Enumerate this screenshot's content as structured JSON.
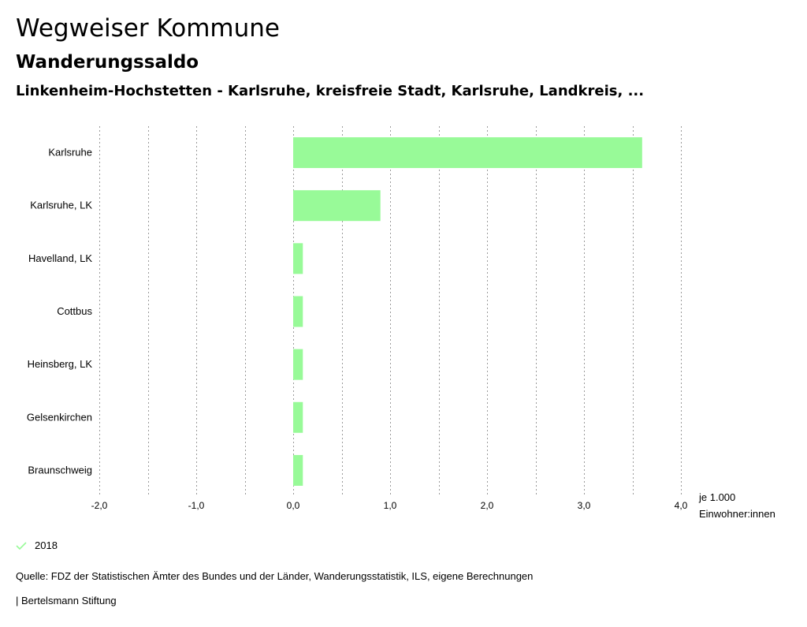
{
  "header": {
    "title": "Wegweiser Kommune",
    "subtitle": "Wanderungssaldo",
    "region": "Linkenheim-Hochstetten - Karlsruhe, kreisfreie Stadt, Karlsruhe, Landkreis, ..."
  },
  "chart_data": {
    "type": "bar",
    "orientation": "horizontal",
    "categories": [
      "Karlsruhe",
      "Karlsruhe, LK",
      "Havelland, LK",
      "Cottbus",
      "Heinsberg, LK",
      "Gelsenkirchen",
      "Braunschweig"
    ],
    "series": [
      {
        "name": "2018",
        "values": [
          3.6,
          0.9,
          0.1,
          0.1,
          0.1,
          0.1,
          0.1
        ]
      }
    ],
    "xlim": [
      -2.0,
      4.0
    ],
    "xticks": [
      {
        "value": -2.0,
        "label": "-2,0"
      },
      {
        "value": -1.0,
        "label": "-1,0"
      },
      {
        "value": 0.0,
        "label": "0,0"
      },
      {
        "value": 1.0,
        "label": "1,0"
      },
      {
        "value": 2.0,
        "label": "2,0"
      },
      {
        "value": 3.0,
        "label": "3,0"
      },
      {
        "value": 4.0,
        "label": "4,0"
      }
    ],
    "gridlines": [
      -2.0,
      -1.5,
      -1.0,
      -0.5,
      0.0,
      0.5,
      1.0,
      1.5,
      2.0,
      2.5,
      3.0,
      3.5,
      4.0
    ],
    "unit_label": [
      "je 1.000",
      "Einwohner:innen"
    ],
    "bar_color": "#98fa98",
    "grid": true
  },
  "legend": {
    "label": "2018",
    "icon": "check-icon",
    "color": "#98fa98"
  },
  "footer": {
    "source": "Quelle: FDZ der Statistischen Ämter des Bundes und der Länder, Wanderungsstatistik, ILS, eigene Berechnungen",
    "publisher": "| Bertelsmann Stiftung"
  }
}
